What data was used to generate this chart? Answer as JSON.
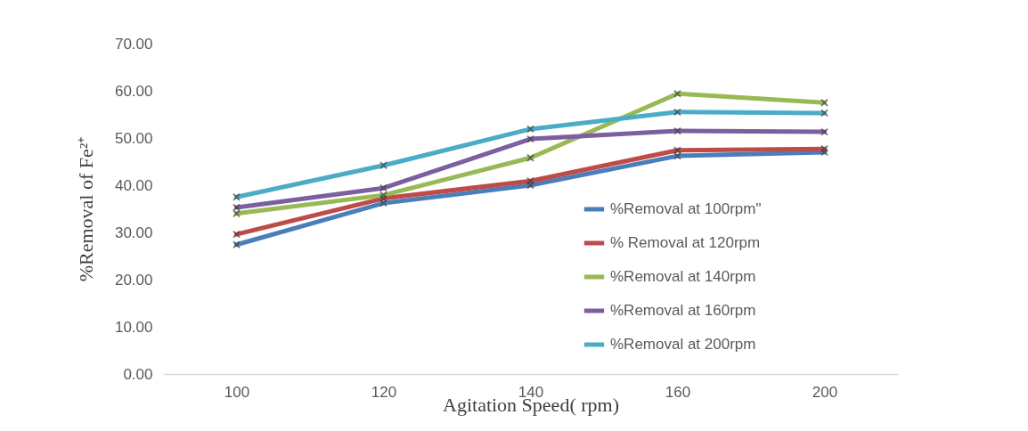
{
  "chart_data": {
    "type": "line",
    "xlabel": "Agitation Speed( rpm)",
    "ylabel": "%Removal of Fe²⁺",
    "categories": [
      "100",
      "120",
      "140",
      "160",
      "200"
    ],
    "series": [
      {
        "name": "%Removal at 100rpm\"",
        "color": "#4a7ebb",
        "values": [
          27.4,
          36.2,
          40.0,
          46.2,
          47.0
        ]
      },
      {
        "name": "% Removal at 120rpm",
        "color": "#be4b48",
        "values": [
          29.6,
          37.2,
          40.9,
          47.4,
          47.7
        ]
      },
      {
        "name": "%Removal at 140rpm",
        "color": "#98b954",
        "values": [
          34.0,
          37.9,
          45.8,
          59.4,
          57.5
        ]
      },
      {
        "name": "%Removal at 160rpm",
        "color": "#7d5fa0",
        "values": [
          35.3,
          39.4,
          49.8,
          51.5,
          51.3
        ]
      },
      {
        "name": "%Removal at 200rpm",
        "color": "#4bacc6",
        "values": [
          37.5,
          44.2,
          51.9,
          55.5,
          55.3
        ]
      }
    ],
    "ylim": [
      0,
      70
    ],
    "yticks": [
      {
        "value": 0,
        "label": "0.00"
      },
      {
        "value": 10,
        "label": "10.00"
      },
      {
        "value": 20,
        "label": "20.00"
      },
      {
        "value": 30,
        "label": "30.00"
      },
      {
        "value": 40,
        "label": "40.00"
      },
      {
        "value": 50,
        "label": "50.00"
      },
      {
        "value": 60,
        "label": "60.00"
      },
      {
        "value": 70,
        "label": "70.00"
      }
    ],
    "grid": false,
    "legend": "right",
    "marker": "cross",
    "line_style": "solid"
  }
}
